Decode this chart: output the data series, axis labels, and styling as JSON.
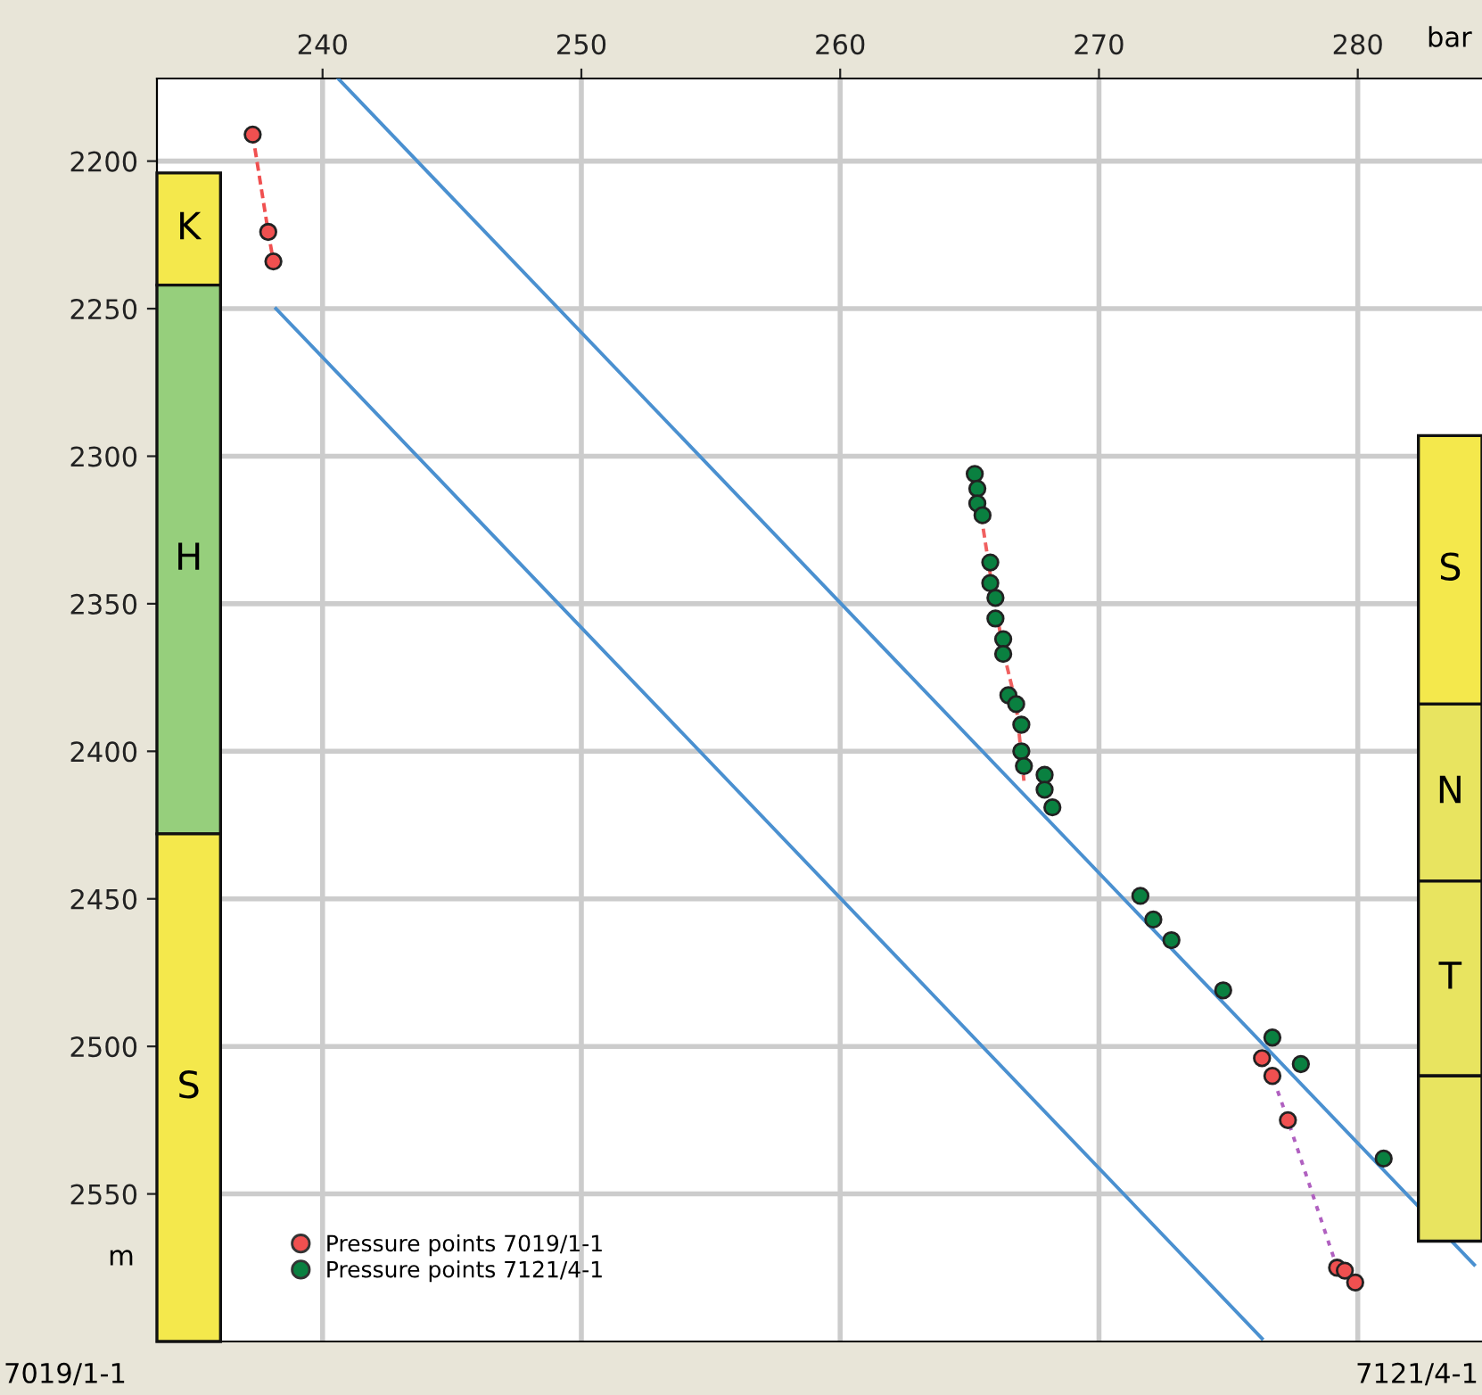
{
  "chart_data": {
    "type": "scatter",
    "xlabel": "bar",
    "ylabel": "m",
    "xlim": [
      233.6,
      284.8
    ],
    "xticks": [
      240,
      250,
      260,
      270,
      280
    ],
    "ylim": [
      2600,
      2172
    ],
    "yticks": [
      2200,
      2250,
      2300,
      2350,
      2400,
      2450,
      2500,
      2550
    ],
    "grid": true,
    "legend": "bottom left",
    "marker": "circle",
    "series": [
      {
        "type": "line",
        "color": "#4a90d0",
        "x": [
          240.6,
          284.5
        ],
        "values": [
          2172,
          2574
        ],
        "marker": "none"
      },
      {
        "type": "line",
        "color": "#f05050",
        "x": [
          237.3,
          237.9,
          238.1
        ],
        "values": [
          2191,
          2224,
          2234
        ],
        "marker": "none",
        "line_style": "dashed"
      },
      {
        "type": "line",
        "color": "#4a90d0",
        "x": [
          238.2,
          276.3
        ],
        "values": [
          2250,
          2599
        ],
        "marker": "none"
      },
      {
        "type": "line",
        "color": "#f06060",
        "x": [
          265.2,
          265.8,
          266.3,
          266.8,
          267.1
        ],
        "values": [
          2306,
          2340,
          2366,
          2384,
          2410
        ],
        "marker": "none",
        "line_style": "dashed"
      },
      {
        "type": "line",
        "color": "#b060c0",
        "x": [
          276.3,
          276.7,
          277.3,
          279.2,
          279.5,
          279.9
        ],
        "values": [
          2504,
          2510,
          2525,
          2575,
          2576,
          2580
        ],
        "marker": "none",
        "line_style": "dotted"
      },
      {
        "name": "Pressure points 7019/1-1",
        "color": "#f05050",
        "x": [
          237.3,
          237.9,
          238.1
        ],
        "values": [
          2191,
          2224,
          2234
        ]
      },
      {
        "color": "#f05050",
        "x": [
          276.3,
          276.7,
          277.3,
          279.2,
          279.5,
          279.9
        ],
        "values": [
          2504,
          2510,
          2525,
          2575,
          2576,
          2580
        ]
      },
      {
        "name": "Pressure points 7121/4-1",
        "color": "#0a8040",
        "x": [
          265.2,
          265.3,
          265.3,
          265.5,
          265.8,
          265.8,
          266.0,
          266.0,
          266.3,
          266.3,
          266.5,
          266.8,
          267.0,
          267.0,
          267.1,
          267.9,
          267.9,
          268.2,
          271.6,
          272.1,
          272.8,
          274.8,
          276.7,
          277.8,
          281.0
        ],
        "values": [
          2306,
          2311,
          2316,
          2320,
          2336,
          2343,
          2348,
          2355,
          2362,
          2367,
          2381,
          2384,
          2391,
          2400,
          2405,
          2408,
          2413,
          2419,
          2449,
          2457,
          2464,
          2481,
          2497,
          2506,
          2538
        ]
      }
    ],
    "bands": [
      {
        "axis": "y",
        "from": 2204,
        "to": 2242,
        "label": "K",
        "color": "#f4e84c"
      },
      {
        "axis": "y",
        "from": 2242,
        "to": 2428,
        "label": "H",
        "color": "#96cf7c"
      },
      {
        "axis": "y",
        "from": 2428,
        "to": 2600,
        "label": "S",
        "color": "#f4e84c"
      },
      {
        "axis": "y",
        "from": 2293,
        "to": 2384,
        "label": "S",
        "color": "#f4e84c"
      },
      {
        "axis": "y",
        "from": 2384,
        "to": 2444,
        "label": "N",
        "color": "#e8e460"
      },
      {
        "axis": "y",
        "from": 2444,
        "to": 2510,
        "label": "T",
        "color": "#e8e460"
      },
      {
        "axis": "y",
        "from": 2510,
        "to": 2566,
        "label": null,
        "color": "#e8e460"
      }
    ],
    "annotations": [
      "7019/1-1",
      "7121/4-1"
    ]
  }
}
